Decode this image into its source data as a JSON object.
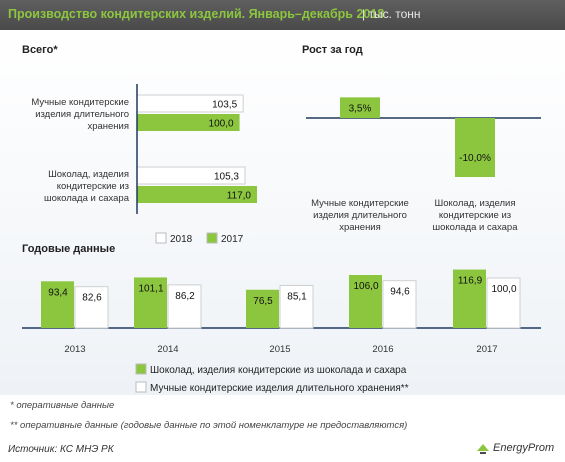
{
  "header": {
    "title": "Производство кондитерских изделий. Январь–декабрь 2018",
    "unit": "| тыс. тонн"
  },
  "colors": {
    "green": "#8cc63f",
    "white_bar": "#ffffff",
    "bar_stroke": "#9a9a9a",
    "axis": "#1f3a5f"
  },
  "chart_data": [
    {
      "type": "bar",
      "orientation": "horizontal",
      "title": "Всего*",
      "categories": [
        "Мучные кондитерские изделия длительного хранения",
        "Шоколад, изделия кондитерские из шоколада и сахара"
      ],
      "category_lines": [
        [
          "Мучные кондитерские",
          "изделия длительного",
          "хранения"
        ],
        [
          "Шоколад, изделия",
          "кондитерские из",
          "шоколада и сахара"
        ]
      ],
      "series": [
        {
          "name": "2018",
          "values": [
            103.5,
            105.3
          ],
          "labels": [
            "103,5",
            "105,3"
          ],
          "color": "#ffffff"
        },
        {
          "name": "2017",
          "values": [
            100.0,
            117.0
          ],
          "labels": [
            "100,0",
            "117,0"
          ],
          "color": "#8cc63f"
        }
      ],
      "legend": "bottom",
      "xlim": [
        0,
        125
      ]
    },
    {
      "type": "bar",
      "title": "Рост за год",
      "categories": [
        "Мучные кондитерские изделия длительного хранения",
        "Шоколад, изделия кондитерские из шоколада и сахара"
      ],
      "category_lines": [
        [
          "Мучные кондитерские",
          "изделия длительного",
          "хранения"
        ],
        [
          "Шоколад, изделия",
          "кондитерские из",
          "шоколада и сахара"
        ]
      ],
      "values": [
        3.5,
        -10.0
      ],
      "labels": [
        "3,5%",
        "-10,0%"
      ],
      "ylim": [
        -13,
        5
      ]
    },
    {
      "type": "bar",
      "title": "Годовые данные",
      "categories": [
        "2013",
        "2014",
        "2015",
        "2016",
        "2017"
      ],
      "series": [
        {
          "name": "Шоколад, изделия кондитерские из шоколада и сахара",
          "values": [
            93.4,
            101.1,
            76.5,
            106.0,
            116.9
          ],
          "labels": [
            "93,4",
            "101,1",
            "76,5",
            "106,0",
            "116,9"
          ],
          "color": "#8cc63f"
        },
        {
          "name": "Мучные кондитерские изделия длительного хранения**",
          "values": [
            82.6,
            86.2,
            85.1,
            94.6,
            100.0
          ],
          "labels": [
            "82,6",
            "86,2",
            "85,1",
            "94,6",
            "100,0"
          ],
          "color": "#ffffff"
        }
      ],
      "legend": "bottom",
      "ylim": [
        0,
        130
      ]
    }
  ],
  "footnotes": [
    "* оперативные данные",
    "** оперативные данные (годовые данные по этой номенклатуре не предоставляются)"
  ],
  "source": "Источник: КС МНЭ РК",
  "logo": {
    "text": "EnergyProm"
  }
}
